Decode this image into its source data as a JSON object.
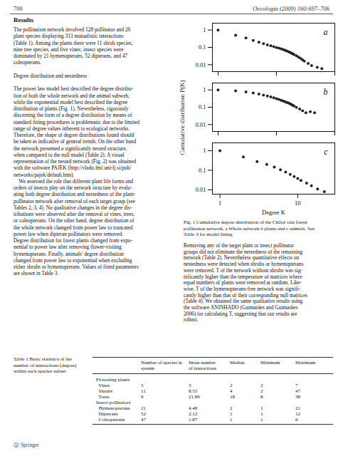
{
  "chart_data": [
    {
      "type": "scatter",
      "title": "a",
      "log": true,
      "color": "#222222",
      "marker": "o",
      "x": [
        1,
        2,
        3,
        4,
        5,
        6,
        7,
        8,
        9,
        10,
        11,
        12,
        13,
        14,
        15,
        16,
        17,
        18,
        19,
        20,
        22,
        24,
        26,
        28,
        30,
        35,
        40,
        50,
        60
      ],
      "values": [
        1.0,
        0.5,
        0.35,
        0.25,
        0.2,
        0.165,
        0.14,
        0.125,
        0.11,
        0.098,
        0.09,
        0.082,
        0.075,
        0.068,
        0.062,
        0.057,
        0.052,
        0.047,
        0.043,
        0.039,
        0.033,
        0.027,
        0.023,
        0.019,
        0.016,
        0.012,
        0.009,
        0.007,
        0.006
      ],
      "xlim": [
        0.8,
        100
      ],
      "xticks": [
        1,
        10,
        100
      ],
      "ylim": [
        0.004,
        2.5
      ],
      "yticks": [
        0.01,
        0.1,
        1
      ],
      "tick_labels": "y"
    },
    {
      "type": "scatter",
      "title": "b",
      "log": true,
      "color": "#222222",
      "marker": "o",
      "ylabel": "Cumulative distribution P(K)",
      "x": [
        1,
        2,
        3,
        4,
        5,
        6,
        7,
        8,
        9,
        10,
        11,
        12,
        13,
        14,
        15,
        16,
        17,
        18,
        19,
        20,
        22,
        25,
        28,
        32,
        38,
        45
      ],
      "values": [
        1.0,
        0.88,
        0.76,
        0.66,
        0.57,
        0.5,
        0.44,
        0.39,
        0.35,
        0.31,
        0.28,
        0.25,
        0.23,
        0.21,
        0.19,
        0.175,
        0.16,
        0.145,
        0.13,
        0.118,
        0.098,
        0.078,
        0.062,
        0.048,
        0.055,
        0.048
      ],
      "xlim": [
        0.8,
        100
      ],
      "xticks": [
        1,
        10,
        100
      ],
      "ylim": [
        0.004,
        2.5
      ],
      "yticks": [
        0.01,
        0.1,
        1
      ],
      "tick_labels": "y"
    },
    {
      "type": "scatter",
      "title": "c",
      "log": true,
      "color": "#222222",
      "marker": "o",
      "xlabel": "Degree K",
      "x": [
        1,
        2,
        3,
        4,
        5,
        6,
        7,
        8,
        9,
        10,
        11,
        13,
        15,
        18,
        22
      ],
      "values": [
        1.0,
        0.48,
        0.28,
        0.2,
        0.145,
        0.105,
        0.08,
        0.062,
        0.048,
        0.038,
        0.03,
        0.022,
        0.016,
        0.011,
        0.008
      ],
      "xlim": [
        0.8,
        30
      ],
      "xticks": [
        1,
        10
      ],
      "ylim": [
        0.006,
        2.5
      ],
      "yticks": [
        0.01,
        0.1,
        1
      ],
      "tick_labels": true
    }
  ],
  "page_text": {
    "header_left": "700",
    "header_right": "Oecologia (2009) 160:697–706",
    "section_title": "Results",
    "left_text": [
      "The pollination network involved 128 pollinator and 26",
      "plant species displaying 313 mutualistic interactions",
      "(Table 1). Among the plants there were 11 shrub species,",
      "nine tree species, and five vines; insect species were",
      "dominated by 21 hymenopterans, 52 dipterans, and 47",
      "coleopterans.",
      "",
      "Degree distribution and nestedness",
      "",
      "The power law model best described the degree distribu-",
      "tion of both the whole network and the animal subweb,",
      "while the exponential model best described the degree",
      "distribution of plants (Fig. 1). Nevertheless, rigorously",
      "discerning the form of a degree distribution by means of",
      "standard fitting procedures is problematic due to the limited",
      "range of degree values inherent to ecological networks.",
      "Therefore, the shape of degree distributions found should",
      "be taken as indicative of general trends. On the other hand",
      "the network presented a significantly nested structure,",
      "when compared to the null model (Table 2). A visual",
      "representation of the nested network (Fig. 2) was obtained",
      "with the software PAJEK (http://vlado.fmf.uni-lj.si/pub/",
      "networks/pajek/default.htm).",
      "    We assessed the role that different plant life forms and",
      "orders of insects play on the network structure by evalu-",
      "ating both degree distribution and nestedness of the plant-",
      "pollinator network after removal of each target group (see",
      "Tables 2, 3, 4). No qualitative changes in the degree dis-",
      "tributions were observed after the removal of vines, trees,",
      "or coleopterans. On the other hand, degree distribution of",
      "the whole network changed from power law to truncated",
      "power law when dipteran pollinators were removed.",
      "Degree distribution for forest plants changed from expo-",
      "nential to power law after removing flower-visiting",
      "hymenopterans. Finally, animals' degree distribution",
      "changed from power law to exponential when excluding",
      "either shrubs or hymenopterans. Values of fitted parameters",
      "are shown in Table 3."
    ],
    "caption": "Fig. 1 Cumulative degree distribution of the Chiloé rain forest\npollination network. a Whole network b plants and c animals. See\nTable 3 for model fitting",
    "right_text": [
      "Removing any of the target plant or insect pollinator",
      "groups did not eliminate the nestedness of the remaining",
      "network (Table 2). Nevertheless quantitative effects on",
      "nestedness were detected when shrubs or hymenopterans",
      "were removed. T of the network without shrubs was sig-",
      "nificantly higher than the temperature of matrices where",
      "equal numbers of plants were removed at random. Like-",
      "wise, T of the hymenopterans-free network was signifi-",
      "cantly higher than that of their corresponding null matrices",
      "(Table 4). We obtained the same qualitative results using",
      "the software ANINHADO (Guimarães and Guimarães",
      "2006) for calculating T, suggesting that our results are",
      "robust."
    ],
    "table_caption": "Table 1 Basic statistics of the\nnumber of interactions (degree)\nwithin each species subset",
    "table_columns": [
      "",
      "Number of species in\nsystem",
      "Mean number\nof interactions",
      "Median",
      "Minimum",
      "Maximum"
    ],
    "table_rows": [
      [
        "Flowering plants",
        "",
        "",
        "",
        "",
        ""
      ],
      [
        "  Vines",
        "5",
        "3",
        "2",
        "2",
        "7"
      ],
      [
        "  Shrubs",
        "11",
        "8.55",
        "4",
        "2",
        "47"
      ],
      [
        "  Trees",
        "9",
        "21.89",
        "18",
        "8",
        "38"
      ],
      [
        "Insect pollinators",
        "",
        "",
        "",
        "",
        ""
      ],
      [
        "  Hymenopterans",
        "21",
        "4.48",
        "2",
        "1",
        "21"
      ],
      [
        "  Dipterans",
        "52",
        "2.12",
        "1",
        "1",
        "12"
      ],
      [
        "  Coleopterans",
        "47",
        "1.87",
        "1",
        "1",
        "6"
      ]
    ],
    "footer": "Ⓢ Springer"
  }
}
